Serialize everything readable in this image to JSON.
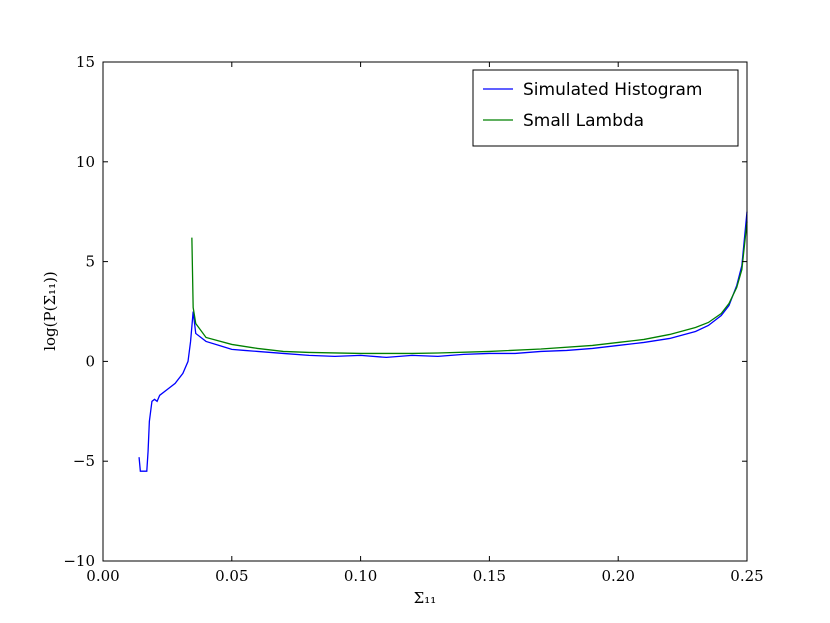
{
  "chart_data": {
    "type": "line",
    "x_label": "Σ₁₁",
    "y_label": "log(P(Σ₁₁))",
    "xlim": [
      0,
      0.25
    ],
    "ylim": [
      -10,
      15
    ],
    "xticks": [
      {
        "value": 0,
        "label": "0.00"
      },
      {
        "value": 0.05,
        "label": "0.05"
      },
      {
        "value": 0.1,
        "label": "0.10"
      },
      {
        "value": 0.15,
        "label": "0.15"
      },
      {
        "value": 0.2,
        "label": "0.20"
      },
      {
        "value": 0.25,
        "label": "0.25"
      }
    ],
    "yticks": [
      {
        "value": -10,
        "label": "−10"
      },
      {
        "value": -5,
        "label": "−5"
      },
      0,
      5,
      10,
      15
    ],
    "legend": "upper right",
    "series": [
      {
        "name": "Simulated Histogram",
        "color": "#0000ff",
        "x": [
          0.014,
          0.0145,
          0.017,
          0.0175,
          0.018,
          0.019,
          0.02,
          0.021,
          0.022,
          0.025,
          0.028,
          0.031,
          0.033,
          0.034,
          0.035,
          0.036,
          0.04,
          0.045,
          0.05,
          0.055,
          0.06,
          0.07,
          0.08,
          0.09,
          0.1,
          0.11,
          0.12,
          0.13,
          0.14,
          0.15,
          0.16,
          0.17,
          0.18,
          0.19,
          0.2,
          0.21,
          0.22,
          0.23,
          0.235,
          0.24,
          0.243,
          0.246,
          0.248,
          0.25
        ],
        "values": [
          -4.8,
          -5.5,
          -5.5,
          -4.5,
          -3,
          -2,
          -1.9,
          -2,
          -1.7,
          -1.4,
          -1.1,
          -0.6,
          0,
          1,
          2.5,
          1.4,
          1.0,
          0.8,
          0.6,
          0.55,
          0.5,
          0.4,
          0.3,
          0.25,
          0.3,
          0.2,
          0.3,
          0.25,
          0.35,
          0.4,
          0.4,
          0.5,
          0.55,
          0.65,
          0.8,
          0.95,
          1.15,
          1.5,
          1.8,
          2.3,
          2.8,
          3.8,
          4.8,
          7.5
        ]
      },
      {
        "name": "Small Lambda",
        "color": "#008000",
        "x": [
          0.0345,
          0.035,
          0.036,
          0.04,
          0.05,
          0.06,
          0.07,
          0.08,
          0.1,
          0.12,
          0.13,
          0.15,
          0.17,
          0.19,
          0.2,
          0.21,
          0.22,
          0.23,
          0.235,
          0.24,
          0.243,
          0.246,
          0.248,
          0.25
        ],
        "values": [
          6.2,
          2.7,
          1.9,
          1.2,
          0.85,
          0.65,
          0.5,
          0.45,
          0.4,
          0.4,
          0.42,
          0.5,
          0.62,
          0.8,
          0.95,
          1.1,
          1.35,
          1.7,
          1.95,
          2.4,
          2.9,
          3.7,
          4.6,
          7.0
        ]
      }
    ]
  }
}
